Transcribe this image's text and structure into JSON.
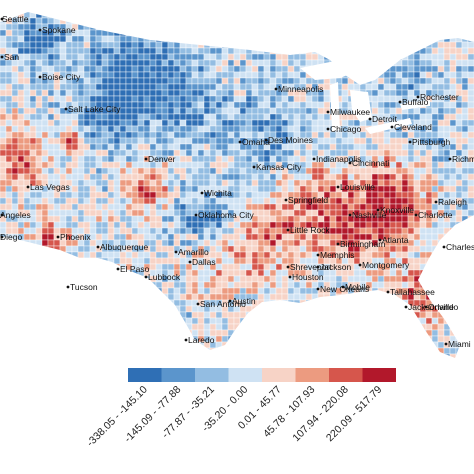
{
  "legend": {
    "classes": [
      {
        "label": "-338.05 - -145.10",
        "color": "#2f6fb5"
      },
      {
        "label": "-145.09 - -77.88",
        "color": "#5b95cc"
      },
      {
        "label": "-77.87 - -35.21",
        "color": "#93bde2"
      },
      {
        "label": "-35.20 - 0.00",
        "color": "#cfe2f3"
      },
      {
        "label": "0.01 - 45.77",
        "color": "#f7d3c6"
      },
      {
        "label": "45.78 - 107.93",
        "color": "#ec9b80"
      },
      {
        "label": "107.94 - 220.08",
        "color": "#d6564c"
      },
      {
        "label": "220.09 - 517.79",
        "color": "#b2182b"
      }
    ]
  },
  "cities": [
    "Seattle",
    "Spokane",
    "Boise City",
    "Salt Lake City",
    "San",
    "Las Vegas",
    "Angeles",
    "Diego",
    "Phoenix",
    "Tucson",
    "Albuquerque",
    "El Paso",
    "Denver",
    "Amarillo",
    "Lubbock",
    "Wichita",
    "Oklahoma City",
    "Dallas",
    "Austin",
    "San Antonio",
    "Laredo",
    "Houston",
    "Omaha",
    "Des Moines",
    "Kansas City",
    "Springfield",
    "Little Rock",
    "Shreveport",
    "Jackson",
    "New Orleans",
    "Mobile",
    "Memphis",
    "Nashville",
    "Birmingham",
    "Montgomery",
    "Atlanta",
    "Knoxville",
    "Charlotte",
    "Raleigh",
    "Richmond",
    "Charleston",
    "Jacksonville",
    "Tallahassee",
    "Orlando",
    "Miami",
    "Minneapolis",
    "Milwaukee",
    "Chicago",
    "Detroit",
    "Indianapolis",
    "Cincinnati",
    "Cleveland",
    "Pittsburgh",
    "Buffalo",
    "Rochester",
    "Louisville"
  ]
}
